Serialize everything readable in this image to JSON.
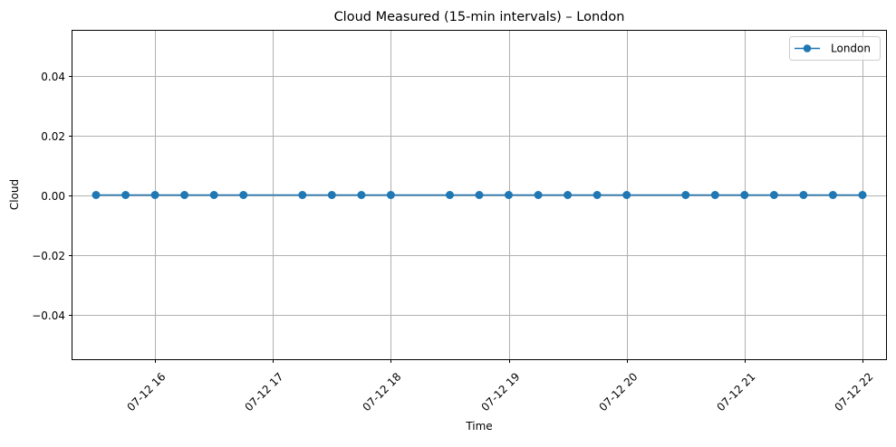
{
  "chart_data": {
    "type": "line",
    "title": "Cloud Measured (15-min intervals) – London",
    "xlabel": "Time",
    "ylabel": "Cloud",
    "x": [
      "2025-07-12 15:30",
      "2025-07-12 15:45",
      "2025-07-12 16:00",
      "2025-07-12 16:15",
      "2025-07-12 16:30",
      "2025-07-12 16:45",
      "2025-07-12 17:15",
      "2025-07-12 17:30",
      "2025-07-12 17:45",
      "2025-07-12 18:00",
      "2025-07-12 18:30",
      "2025-07-12 18:45",
      "2025-07-12 19:00",
      "2025-07-12 19:15",
      "2025-07-12 19:30",
      "2025-07-12 19:45",
      "2025-07-12 20:00",
      "2025-07-12 20:30",
      "2025-07-12 20:45",
      "2025-07-12 21:00",
      "2025-07-12 21:15",
      "2025-07-12 21:30",
      "2025-07-12 21:45",
      "2025-07-12 22:00"
    ],
    "series": [
      {
        "name": "London",
        "color": "#1f77b4",
        "values": [
          0,
          0,
          0,
          0,
          0,
          0,
          0,
          0,
          0,
          0,
          0,
          0,
          0,
          0,
          0,
          0,
          0,
          0,
          0,
          0,
          0,
          0,
          0,
          0
        ]
      }
    ],
    "x_ticks": [
      "2025-07-12 16:00",
      "2025-07-12 17:00",
      "2025-07-12 18:00",
      "2025-07-12 19:00",
      "2025-07-12 20:00",
      "2025-07-12 21:00",
      "2025-07-12 22:00"
    ],
    "x_tick_labels": [
      "07-12 16",
      "07-12 17",
      "07-12 18",
      "07-12 19",
      "07-12 20",
      "07-12 21",
      "07-12 22"
    ],
    "xlim": [
      "2025-07-12 15:18",
      "2025-07-12 22:12"
    ],
    "y_ticks": [
      -0.04,
      -0.02,
      0.0,
      0.02,
      0.04
    ],
    "y_tick_labels": [
      "−0.04",
      "−0.02",
      "0.00",
      "0.02",
      "0.04"
    ],
    "ylim": [
      -0.055,
      0.055
    ],
    "grid": true,
    "legend": "top-right"
  }
}
